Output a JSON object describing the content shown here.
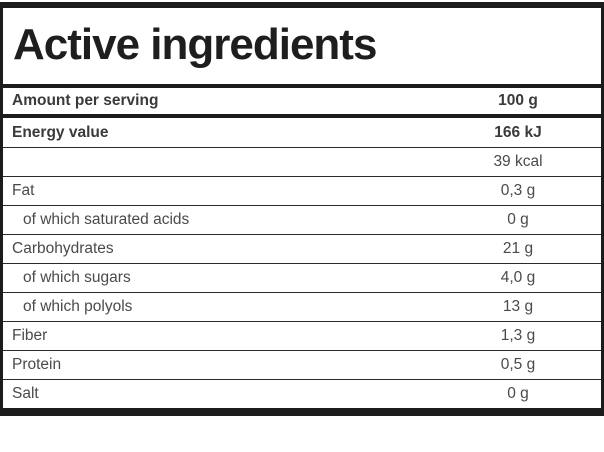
{
  "table": {
    "title": "Active ingredients",
    "serving_row": {
      "label": "Amount per serving",
      "value": "100 g",
      "bold": true
    },
    "rows": [
      {
        "label": "Energy value",
        "value": "166 kJ",
        "bold": true,
        "indent": false
      },
      {
        "label": "",
        "value": "39 kcal",
        "bold": false,
        "indent": false
      },
      {
        "label": "Fat",
        "value": "0,3 g",
        "bold": false,
        "indent": false
      },
      {
        "label": "of which saturated acids",
        "value": "0 g",
        "bold": false,
        "indent": true
      },
      {
        "label": "Carbohydrates",
        "value": "21 g",
        "bold": false,
        "indent": false
      },
      {
        "label": "of which sugars",
        "value": "4,0 g",
        "bold": false,
        "indent": true
      },
      {
        "label": "of which polyols",
        "value": "13 g",
        "bold": false,
        "indent": true
      },
      {
        "label": "Fiber",
        "value": "1,3 g",
        "bold": false,
        "indent": false
      },
      {
        "label": "Protein",
        "value": "0,5 g",
        "bold": false,
        "indent": false
      },
      {
        "label": "Salt",
        "value": "0 g",
        "bold": false,
        "indent": false
      }
    ],
    "colors": {
      "border": "#1c1c1c",
      "row_separator": "#2a2a2a",
      "title_text": "#1e1e1e",
      "label_text": "#4a4a4a"
    }
  }
}
